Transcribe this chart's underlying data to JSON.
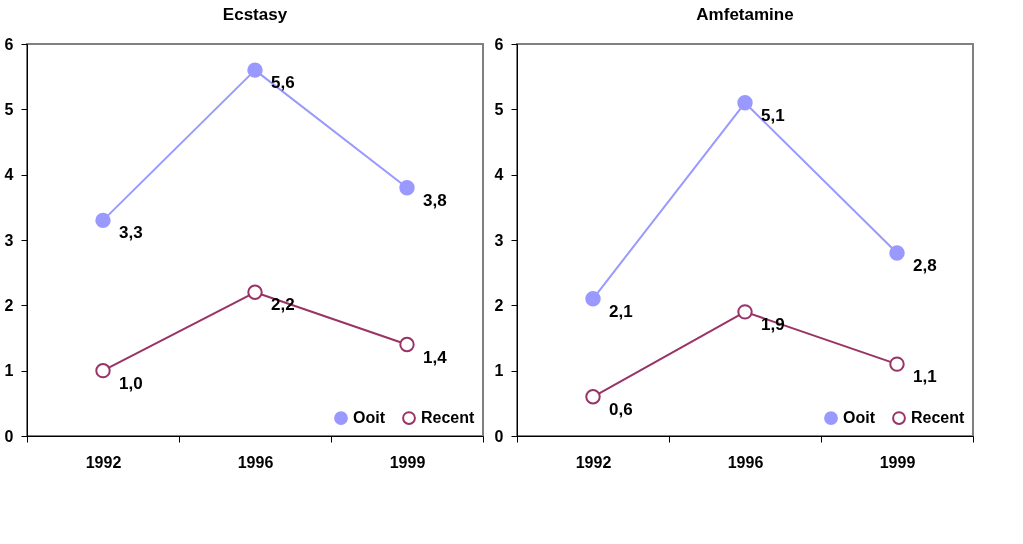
{
  "chart_data": [
    {
      "type": "line",
      "title": "Ecstasy",
      "categories": [
        "1992",
        "1996",
        "1999"
      ],
      "ylim": [
        0,
        6
      ],
      "yticks": [
        0,
        1,
        2,
        3,
        4,
        5,
        6
      ],
      "grid": false,
      "legend": "bottom right",
      "marker": "circle",
      "series": [
        {
          "name": "Ooit",
          "color": "#9999ff",
          "values": [
            3.3,
            5.6,
            3.8
          ],
          "value_labels": [
            "3,3",
            "5,6",
            "3,8"
          ]
        },
        {
          "name": "Recent",
          "color": "#993366",
          "values": [
            1.0,
            2.2,
            1.4
          ],
          "value_labels": [
            "1,0",
            "2,2",
            "1,4"
          ]
        }
      ]
    },
    {
      "type": "line",
      "title": "Amfetamine",
      "categories": [
        "1992",
        "1996",
        "1999"
      ],
      "ylim": [
        0,
        6
      ],
      "yticks": [
        0,
        1,
        2,
        3,
        4,
        5,
        6
      ],
      "grid": false,
      "legend": "bottom right",
      "marker": "circle",
      "series": [
        {
          "name": "Ooit",
          "color": "#9999ff",
          "values": [
            2.1,
            5.1,
            2.8
          ],
          "value_labels": [
            "2,1",
            "5,1",
            "2,8"
          ]
        },
        {
          "name": "Recent",
          "color": "#993366",
          "values": [
            0.6,
            1.9,
            1.1
          ],
          "value_labels": [
            "0,6",
            "1,9",
            "1,1"
          ]
        }
      ]
    }
  ]
}
